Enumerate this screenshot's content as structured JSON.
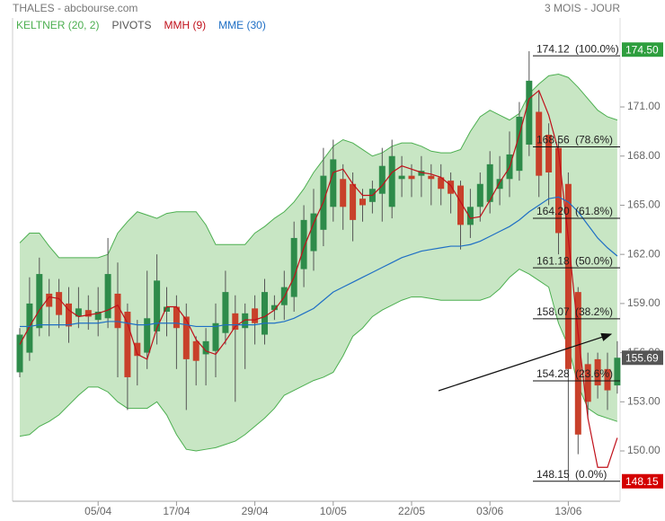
{
  "chart_data": {
    "type": "candlestick",
    "title": "THALES - abcbourse.com",
    "subtitle": "3 MOIS - JOUR",
    "categories": [
      null,
      null,
      null,
      null,
      null,
      null,
      null,
      null,
      "05/04",
      null,
      null,
      null,
      null,
      null,
      null,
      null,
      "17/04",
      null,
      null,
      null,
      null,
      null,
      null,
      null,
      "29/04",
      null,
      null,
      null,
      null,
      null,
      null,
      null,
      "10/05",
      null,
      null,
      null,
      null,
      null,
      null,
      null,
      "22/05",
      null,
      null,
      null,
      null,
      null,
      null,
      null,
      "03/06",
      null,
      null,
      null,
      null,
      null,
      null,
      null,
      "13/06",
      null,
      null,
      null,
      null,
      null
    ],
    "open": [
      154.8,
      156.0,
      157.5,
      159.6,
      159.7,
      159.0,
      158.2,
      158.6,
      158.0,
      158.1,
      159.6,
      158.5,
      156.6,
      156.0,
      157.3,
      158.5,
      158.8,
      158.2,
      156.7,
      155.9,
      156.1,
      157.2,
      158.4,
      157.5,
      158.7,
      157.1,
      158.6,
      158.9,
      159.4,
      161.1,
      162.2,
      163.5,
      164.9,
      166.6,
      166.3,
      165.4,
      165.2,
      165.7,
      164.9,
      166.6,
      166.8,
      166.8,
      166.8,
      166.7,
      166.5,
      166.2,
      163.8,
      164.9,
      165.2,
      166.0,
      166.6,
      167.1,
      168.7,
      170.7,
      169.3,
      168.5,
      166.3,
      159.7,
      155.3,
      155.6,
      155.0,
      154.0
    ],
    "high": [
      157.5,
      160.6,
      161.8,
      160.5,
      160.5,
      160.0,
      160.0,
      159.5,
      160.0,
      163.0,
      161.5,
      159.0,
      158.0,
      161.0,
      162.0,
      160.0,
      159.5,
      159.0,
      157.0,
      157.5,
      159.0,
      161.0,
      159.5,
      159.0,
      159.5,
      160.5,
      159.5,
      161.0,
      164.0,
      165.0,
      166.0,
      168.5,
      169.0,
      167.5,
      167.0,
      166.0,
      166.5,
      168.5,
      169.0,
      168.0,
      167.5,
      168.0,
      167.5,
      167.5,
      167.0,
      166.5,
      166.0,
      167.0,
      168.3,
      168.0,
      169.5,
      171.3,
      174.4,
      172.0,
      170.0,
      169.0,
      167.0,
      160.0,
      156.0,
      156.0,
      156.0,
      156.7
    ],
    "low": [
      154.5,
      155.5,
      157.0,
      157.0,
      157.5,
      156.6,
      157.5,
      157.4,
      157.0,
      157.5,
      154.5,
      152.5,
      154.0,
      155.0,
      156.5,
      157.0,
      155.0,
      152.5,
      154.0,
      154.0,
      154.5,
      156.5,
      153.0,
      155.0,
      156.5,
      156.5,
      158.0,
      158.0,
      158.5,
      160.0,
      161.0,
      162.5,
      164.0,
      163.5,
      162.8,
      164.0,
      164.5,
      164.0,
      164.2,
      165.5,
      165.5,
      165.5,
      165.0,
      165.0,
      164.5,
      162.3,
      163.0,
      164.0,
      164.5,
      165.0,
      165.5,
      166.5,
      168.0,
      165.5,
      165.0,
      162.0,
      148.2,
      149.8,
      152.0,
      153.2,
      152.5,
      153.5
    ],
    "close": [
      157.1,
      159.0,
      160.8,
      158.8,
      158.3,
      157.6,
      158.7,
      158.2,
      158.5,
      160.8,
      157.5,
      154.5,
      155.8,
      158.1,
      160.4,
      158.8,
      157.5,
      155.6,
      155.5,
      156.7,
      157.8,
      159.7,
      157.4,
      158.4,
      157.8,
      159.7,
      158.9,
      160.0,
      163.0,
      164.1,
      164.5,
      166.8,
      167.8,
      164.9,
      164.1,
      165.0,
      166.0,
      167.4,
      168.0,
      166.8,
      166.6,
      167.1,
      166.6,
      166.0,
      165.7,
      163.8,
      164.9,
      166.3,
      167.5,
      166.6,
      168.1,
      170.4,
      172.6,
      166.8,
      167.0,
      163.3,
      155.0,
      151.0,
      153.0,
      154.0,
      153.7,
      155.69
    ],
    "up_color": "#2e8b4a",
    "down_color": "#c8402a",
    "series": [
      {
        "name": "KELTNER (20, 2)",
        "color": "#4caf50",
        "fill": "#c8e6c4",
        "upper": [
          162.7,
          163.3,
          163.3,
          162.5,
          161.8,
          161.8,
          161.8,
          161.8,
          161.8,
          162.0,
          163.3,
          164.0,
          164.6,
          164.4,
          164.2,
          164.5,
          164.6,
          164.6,
          164.6,
          163.8,
          162.6,
          162.6,
          162.6,
          162.6,
          163.3,
          163.7,
          164.2,
          164.6,
          165.2,
          166.0,
          167.0,
          167.8,
          168.6,
          169.0,
          168.8,
          168.4,
          168.0,
          168.2,
          168.6,
          168.8,
          168.8,
          168.6,
          168.3,
          168.2,
          168.2,
          168.4,
          169.5,
          170.4,
          170.8,
          170.5,
          170.2,
          170.6,
          171.8,
          172.4,
          172.9,
          173.0,
          172.8,
          172.2,
          171.5,
          170.8,
          170.4,
          170.2
        ],
        "lower": [
          150.9,
          151.0,
          151.5,
          151.8,
          152.2,
          152.8,
          153.4,
          153.9,
          153.9,
          153.6,
          153.0,
          152.6,
          152.6,
          152.6,
          153.0,
          152.2,
          151.0,
          150.1,
          150.0,
          150.1,
          150.2,
          150.4,
          150.6,
          151.0,
          151.5,
          152.0,
          152.6,
          153.4,
          153.7,
          154.0,
          154.3,
          154.5,
          154.8,
          155.8,
          157.0,
          157.5,
          158.2,
          158.6,
          158.9,
          159.2,
          159.4,
          159.4,
          159.3,
          159.2,
          159.2,
          159.2,
          159.2,
          159.2,
          159.4,
          159.9,
          160.6,
          161.1,
          160.8,
          160.4,
          160.0,
          157.8,
          156.4,
          154.0,
          152.6,
          152.2,
          152.0,
          151.8
        ]
      },
      {
        "name": "PIVOTS",
        "color": "#555555"
      },
      {
        "name": "MMH (9)",
        "color": "#c0101a",
        "values": [
          156.5,
          157.6,
          158.6,
          159.4,
          159.3,
          158.6,
          158.2,
          158.3,
          158.4,
          158.6,
          158.9,
          157.8,
          155.9,
          155.6,
          157.5,
          158.8,
          158.8,
          158.0,
          156.8,
          156.1,
          155.9,
          156.7,
          157.6,
          158.0,
          158.0,
          158.2,
          158.6,
          159.4,
          160.6,
          162.4,
          163.9,
          165.2,
          167.0,
          167.2,
          166.3,
          165.6,
          165.6,
          166.2,
          167.0,
          167.4,
          167.2,
          167.0,
          166.9,
          166.7,
          166.2,
          165.2,
          164.2,
          164.3,
          165.3,
          166.4,
          167.3,
          169.3,
          171.5,
          172.0,
          170.5,
          168.3,
          163.0,
          157.2,
          152.0,
          149.0,
          149.0,
          150.8
        ]
      },
      {
        "name": "MME (30)",
        "color": "#1f6fc5",
        "values": [
          157.6,
          157.6,
          157.7,
          157.7,
          157.7,
          157.7,
          157.8,
          157.8,
          157.8,
          157.9,
          157.9,
          157.8,
          157.7,
          157.7,
          157.8,
          157.8,
          157.8,
          157.7,
          157.6,
          157.6,
          157.6,
          157.7,
          157.7,
          157.7,
          157.7,
          157.8,
          157.8,
          157.9,
          158.1,
          158.4,
          158.7,
          159.2,
          159.7,
          160.0,
          160.3,
          160.6,
          160.9,
          161.2,
          161.5,
          161.8,
          162.0,
          162.2,
          162.3,
          162.4,
          162.5,
          162.5,
          162.6,
          162.8,
          163.1,
          163.4,
          163.7,
          164.1,
          164.6,
          165.0,
          165.4,
          165.5,
          165.2,
          164.6,
          163.8,
          163.0,
          162.4,
          161.9
        ]
      }
    ],
    "ylim": [
      146.93,
      175.06
    ],
    "yticks": [
      {
        "value": 150,
        "label": "150.00"
      },
      {
        "value": 153,
        "label": "153.00"
      },
      {
        "value": 156,
        "label": "156.00"
      },
      {
        "value": 159,
        "label": "159.00"
      },
      {
        "value": 162,
        "label": "162.00"
      },
      {
        "value": 165,
        "label": "165.00"
      },
      {
        "value": 168,
        "label": "168.00"
      },
      {
        "value": 171,
        "label": "171.00"
      }
    ],
    "fibonacci": [
      {
        "price": 174.12,
        "ratio": {
          "value": 100,
          "label": "(100.0%)"
        }
      },
      {
        "price": 168.56,
        "ratio": {
          "value": 78.6,
          "label": "(78.6%)"
        }
      },
      {
        "price": 164.2,
        "price_label": "164.20",
        "ratio": {
          "value": 61.8,
          "label": "(61.8%)"
        }
      },
      {
        "price": 161.18,
        "ratio": {
          "value": 50,
          "label": "(50.0%)"
        }
      },
      {
        "price": 158.07,
        "ratio": {
          "value": 38.2,
          "label": "(38.2%)"
        }
      },
      {
        "price": 154.28,
        "ratio": {
          "value": 23.6,
          "label": "(23.6%)"
        }
      },
      {
        "price": 148.15,
        "ratio": {
          "value": 0,
          "label": "(0.0%)"
        }
      }
    ],
    "price_labels": [
      {
        "value": 174.5,
        "label": "174.50",
        "color": "#2e9e3e"
      },
      {
        "value": 155.69,
        "label": "155.69",
        "color": "#555555"
      },
      {
        "value": 148.15,
        "label": "148.15",
        "color": "#d40000"
      }
    ]
  }
}
